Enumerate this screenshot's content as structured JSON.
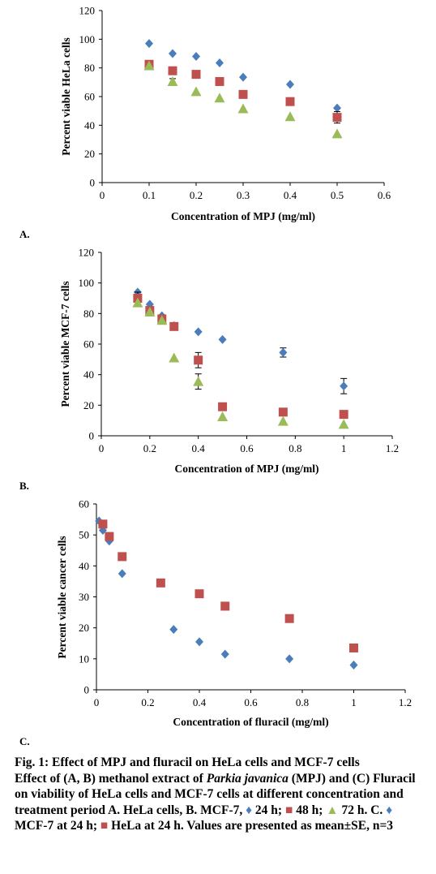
{
  "colors": {
    "d24": "#4a7ebb",
    "d48": "#c0504d",
    "d72": "#9bbb59"
  },
  "chart_data": [
    {
      "id": "A",
      "type": "scatter",
      "panel_label": "A.",
      "xlabel": "Concentration of MPJ (mg/ml)",
      "ylabel": "Percent viable HeLa cells",
      "xlim": [
        0,
        0.6
      ],
      "ylim": [
        0,
        120
      ],
      "xticks": [
        "0",
        "0.1",
        "0.2",
        "0.3",
        "0.4",
        "0.5",
        "0.6"
      ],
      "yticks": [
        "0",
        "20",
        "40",
        "60",
        "80",
        "100",
        "120"
      ],
      "series": [
        {
          "marker": "diamond",
          "color": "#4a7ebb",
          "x": [
            0.1,
            0.15,
            0.2,
            0.25,
            0.3,
            0.4,
            0.5
          ],
          "y": [
            97,
            90,
            88,
            83.5,
            73.5,
            68.5,
            52
          ],
          "err": [
            0,
            0,
            0,
            0,
            0,
            0,
            0
          ]
        },
        {
          "marker": "square",
          "color": "#c0504d",
          "x": [
            0.1,
            0.15,
            0.2,
            0.25,
            0.3,
            0.4,
            0.5
          ],
          "y": [
            82.5,
            78,
            75.5,
            70.5,
            61.5,
            56.5,
            45.5
          ],
          "err": [
            0,
            0,
            0,
            0,
            0,
            0,
            4
          ]
        },
        {
          "marker": "triangle",
          "color": "#9bbb59",
          "x": [
            0.1,
            0.15,
            0.2,
            0.25,
            0.3,
            0.4,
            0.5
          ],
          "y": [
            81.5,
            70.5,
            63.5,
            59,
            51.5,
            46,
            34
          ],
          "err": [
            0,
            2,
            0,
            0,
            0,
            0,
            0
          ]
        }
      ]
    },
    {
      "id": "B",
      "type": "scatter",
      "panel_label": "B.",
      "xlabel": "Concentration of MPJ (mg/ml)",
      "ylabel": "Percent viable MCF-7 cells",
      "xlim": [
        0,
        1.2
      ],
      "ylim": [
        0,
        120
      ],
      "xticks": [
        "0",
        "0.2",
        "0.4",
        "0.6",
        "0.8",
        "1",
        "1.2"
      ],
      "yticks": [
        "0",
        "20",
        "40",
        "60",
        "80",
        "100",
        "120"
      ],
      "series": [
        {
          "marker": "diamond",
          "color": "#4a7ebb",
          "x": [
            0.15,
            0.2,
            0.25,
            0.3,
            0.4,
            0.5,
            0.75,
            1.0
          ],
          "y": [
            94,
            86,
            78.5,
            72,
            68,
            63,
            54.5,
            32.5
          ],
          "err": [
            0,
            0,
            0,
            0,
            0,
            0,
            3,
            5
          ]
        },
        {
          "marker": "square",
          "color": "#c0504d",
          "x": [
            0.15,
            0.2,
            0.25,
            0.3,
            0.4,
            0.5,
            0.75,
            1.0
          ],
          "y": [
            90,
            82,
            76.5,
            71.5,
            49.5,
            19,
            15.5,
            14
          ],
          "err": [
            4,
            0,
            0,
            0,
            5,
            0,
            0,
            0
          ]
        },
        {
          "marker": "triangle",
          "color": "#9bbb59",
          "x": [
            0.15,
            0.2,
            0.25,
            0.3,
            0.4,
            0.5,
            0.75,
            1.0
          ],
          "y": [
            87,
            81,
            75.5,
            51,
            35.5,
            12.5,
            9.5,
            7.5
          ],
          "err": [
            0,
            0,
            0,
            0,
            5,
            0,
            0,
            0
          ]
        }
      ]
    },
    {
      "id": "C",
      "type": "scatter",
      "panel_label": "C.",
      "xlabel": "Concentration of fluracil (mg/ml)",
      "ylabel": "Percent viable cancer cells",
      "xlim": [
        0,
        1.2
      ],
      "ylim": [
        0,
        60
      ],
      "xticks": [
        "0",
        "0.2",
        "0.4",
        "0.6",
        "0.8",
        "1",
        "1.2"
      ],
      "yticks": [
        "0",
        "10",
        "20",
        "30",
        "40",
        "50",
        "60"
      ],
      "series": [
        {
          "marker": "diamond",
          "color": "#4a7ebb",
          "x": [
            0.01,
            0.025,
            0.05,
            0.1,
            0.3,
            0.4,
            0.5,
            0.75,
            1.0
          ],
          "y": [
            54.5,
            51.5,
            48,
            37.5,
            19.5,
            15.5,
            11.5,
            10,
            8
          ],
          "err": [
            0,
            0,
            0,
            0,
            0,
            0,
            0,
            0,
            0
          ]
        },
        {
          "marker": "square",
          "color": "#c0504d",
          "x": [
            0.025,
            0.05,
            0.1,
            0.25,
            0.4,
            0.5,
            0.75,
            1.0
          ],
          "y": [
            53.5,
            49.5,
            43,
            34.5,
            31,
            27,
            23,
            13.5
          ],
          "err": [
            0,
            0,
            0,
            0,
            0,
            0,
            0,
            0
          ]
        }
      ]
    }
  ],
  "caption": {
    "title": "Fig. 1: Effect of MPJ and fluracil on HeLa cells and MCF-7 cells",
    "body_a": "Effect of (A, B) methanol extract of ",
    "species": "Parkia javanica",
    "body_b": " (MPJ) and (C) Fluracil on viability of HeLa cells and MCF-7 cells at different concentration and treatment period A. HeLa cells, B. MCF-7, ",
    "legend_24": " 24 h; ",
    "legend_48": " 48 h; ",
    "legend_72": " 72 h. C. ",
    "legend_mcf": " MCF-7 at 24 h; ",
    "legend_hela": " HeLa at 24 h. Values are presented as mean±SE, n=3"
  }
}
